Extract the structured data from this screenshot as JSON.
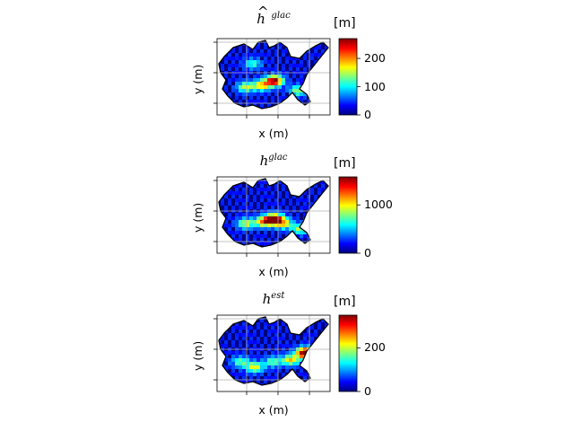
{
  "chart_data": [
    {
      "type": "heatmap",
      "title": "ĥ^glac",
      "title_base": "h",
      "title_hat": true,
      "title_sup": "glac",
      "xlabel": "x (m)",
      "ylabel": "y (m)",
      "colorbar_unit": "[m]",
      "colorbar_range": [
        0,
        270
      ],
      "colorbar_ticks": [
        0,
        100,
        200
      ],
      "colormap": "jet",
      "grid": true
    },
    {
      "type": "heatmap",
      "title": "h^glac",
      "title_base": "h",
      "title_hat": false,
      "title_sup": "glac",
      "xlabel": "x (m)",
      "ylabel": "y (m)",
      "colorbar_unit": "[m]",
      "colorbar_range": [
        0,
        1580
      ],
      "colorbar_ticks": [
        0,
        1000
      ],
      "colormap": "jet",
      "grid": true
    },
    {
      "type": "heatmap",
      "title": "h^est",
      "title_base": "h",
      "title_hat": false,
      "title_sup": "est",
      "xlabel": "x (m)",
      "ylabel": "y (m)",
      "colorbar_unit": "[m]",
      "colorbar_range": [
        0,
        350
      ],
      "colorbar_ticks": [
        0,
        200
      ],
      "colormap": "jet",
      "grid": true
    }
  ],
  "colors": {
    "jet": [
      "#00007f",
      "#0000ff",
      "#007fff",
      "#00ffff",
      "#7fff7f",
      "#ffff00",
      "#ff7f00",
      "#ff0000",
      "#7f0000"
    ],
    "grid": "#b0b0b0",
    "outline": "#000000"
  }
}
